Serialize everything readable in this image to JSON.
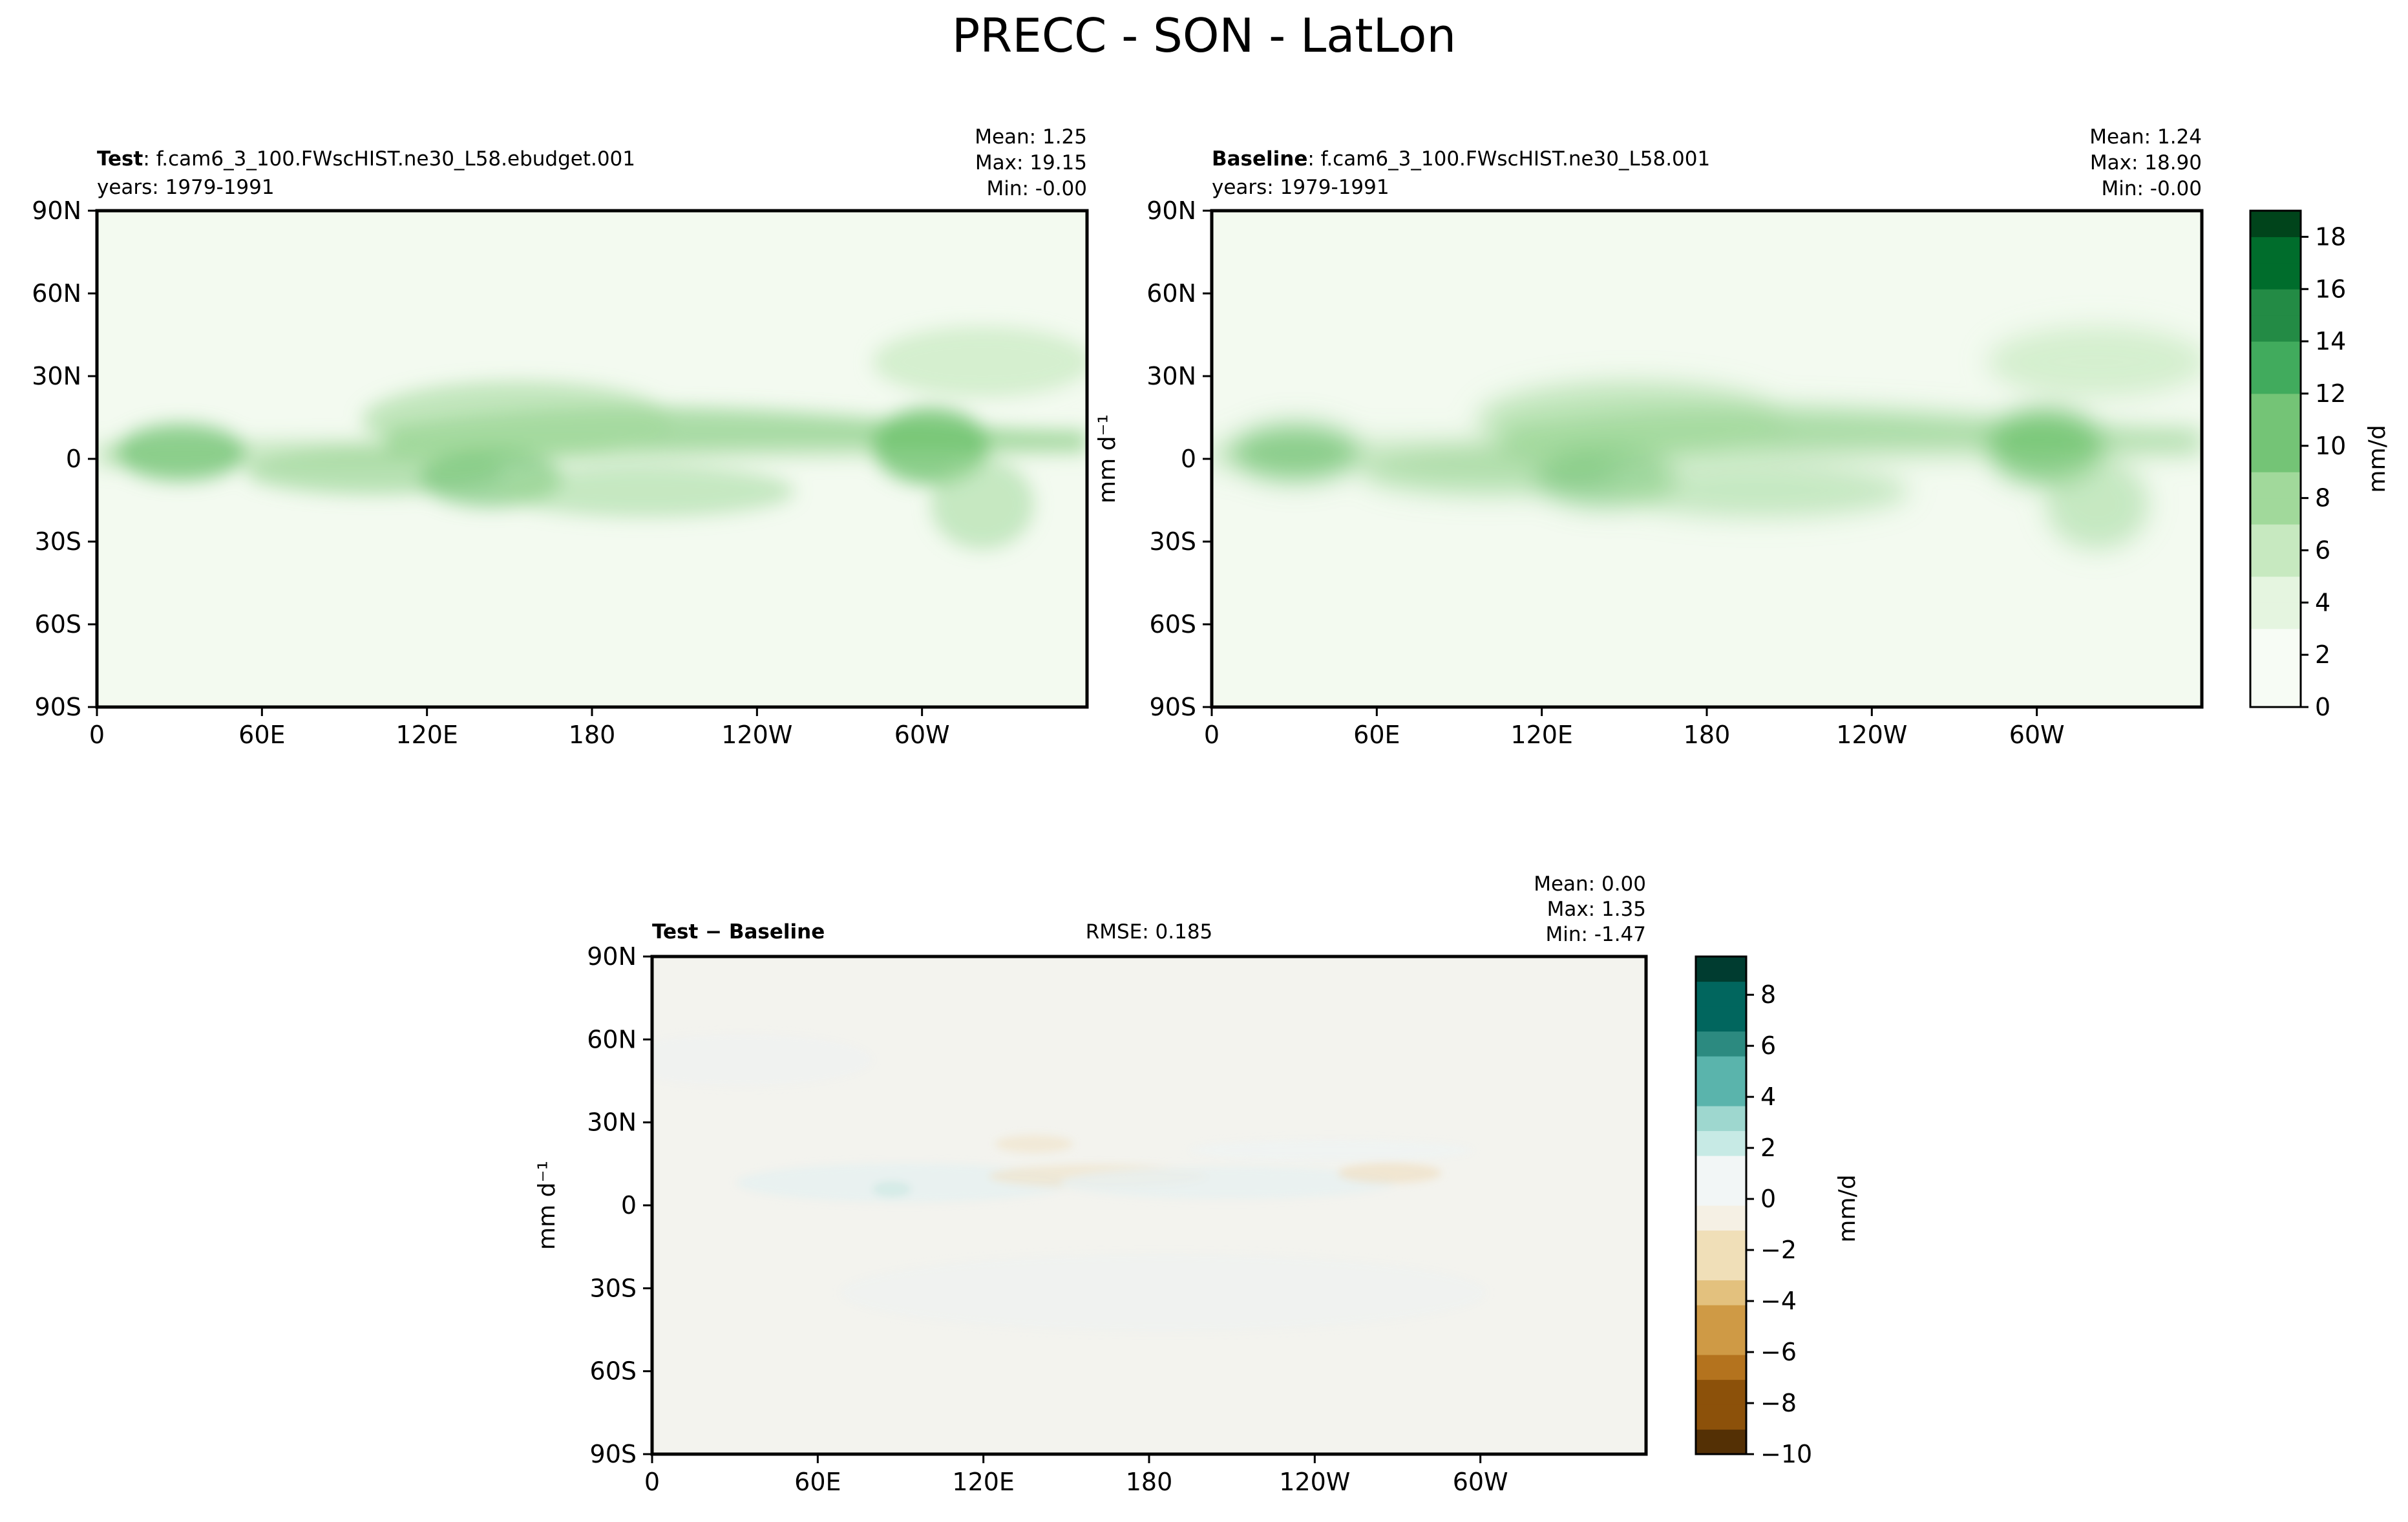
{
  "figure": {
    "title": "PRECC - SON - LatLon"
  },
  "colors": {
    "land_outline": "#000000",
    "precip_cmap": [
      "#f7fcf5",
      "#e5f5e0",
      "#c7e9c0",
      "#a1d99b",
      "#74c476",
      "#41ab5d",
      "#238b45",
      "#006d2c",
      "#00441b"
    ],
    "diff_cmap_neg": [
      "#f5f0e4",
      "#f0dfb8",
      "#e3c17e",
      "#cf9a45",
      "#b4731e",
      "#8c510a",
      "#543005"
    ],
    "diff_cmap_pos": [
      "#f2f6f6",
      "#c7eae5",
      "#9ed7cf",
      "#5ab4ac",
      "#2c8a80",
      "#01665e",
      "#003c30"
    ]
  },
  "chart_data": [
    {
      "type": "heatmap",
      "panel": "test",
      "title_bold": "Test",
      "title_text": ": f.cam6_3_100.FWscHIST.ne30_L58.ebudget.001",
      "subtitle": "years: 1979-1991",
      "stats": {
        "mean": "Mean:  1.25",
        "max": "Max: 19.15",
        "min": "Min: -0.00"
      },
      "ylabel": "",
      "x_ticks": [
        "0",
        "60E",
        "120E",
        "180",
        "120W",
        "60W"
      ],
      "y_ticks": [
        "90N",
        "60N",
        "30N",
        "0",
        "30S",
        "60S",
        "90S"
      ],
      "xlim": [
        0,
        360
      ],
      "ylim": [
        -90,
        90
      ],
      "value_range": [
        0,
        19
      ]
    },
    {
      "type": "heatmap",
      "panel": "baseline",
      "title_bold": "Baseline",
      "title_text": ": f.cam6_3_100.FWscHIST.ne30_L58.001",
      "subtitle": "years: 1979-1991",
      "stats": {
        "mean": "Mean:  1.24",
        "max": "Max: 18.90",
        "min": "Min: -0.00"
      },
      "ylabel": "mm d⁻¹",
      "x_ticks": [
        "0",
        "60E",
        "120E",
        "180",
        "120W",
        "60W"
      ],
      "y_ticks": [
        "90N",
        "60N",
        "30N",
        "0",
        "30S",
        "60S",
        "90S"
      ],
      "xlim": [
        0,
        360
      ],
      "ylim": [
        -90,
        90
      ],
      "value_range": [
        0,
        19
      ],
      "colorbar": {
        "label": "mm/d",
        "ticks": [
          "0",
          "2",
          "4",
          "6",
          "8",
          "10",
          "12",
          "14",
          "16",
          "18"
        ],
        "range": [
          0,
          19
        ]
      }
    },
    {
      "type": "heatmap",
      "panel": "difference",
      "title_bold": "Test",
      "title_text": " − Baseline",
      "rmse": "RMSE: 0.185",
      "stats": {
        "mean": "Mean:  0.00",
        "max": "Max:  1.35",
        "min": "Min: -1.47"
      },
      "ylabel": "mm d⁻¹",
      "x_ticks": [
        "0",
        "60E",
        "120E",
        "180",
        "120W",
        "60W"
      ],
      "y_ticks": [
        "90N",
        "60N",
        "30N",
        "0",
        "30S",
        "60S",
        "90S"
      ],
      "xlim": [
        0,
        360
      ],
      "ylim": [
        -90,
        90
      ],
      "value_range": [
        -10,
        9.5
      ],
      "colorbar": {
        "label": "mm/d",
        "ticks": [
          "8",
          "6",
          "4",
          "2",
          "0",
          "−2",
          "−4",
          "−6",
          "−8",
          "−10"
        ],
        "range": [
          -10,
          9.5
        ]
      }
    }
  ]
}
